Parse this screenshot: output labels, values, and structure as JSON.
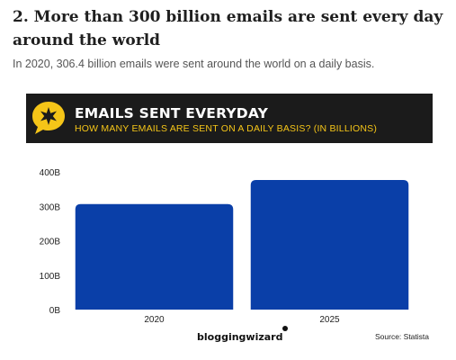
{
  "article": {
    "heading": "2. More than 300 billion emails are sent every day around the world",
    "lead": "In 2020, 306.4 billion emails were sent around the world on a daily basis."
  },
  "banner": {
    "title": "EMAILS SENT EVERYDAY",
    "subtitle": "HOW MANY EMAILS ARE SENT ON A DAILY BASIS? (IN BILLIONS)",
    "badge_icon": "star-speech-bubble-icon",
    "badge_color": "#f5c518",
    "background_color": "#1b1b1b"
  },
  "chart_data": {
    "type": "bar",
    "categories": [
      "2020",
      "2025"
    ],
    "values": [
      306.4,
      376.4
    ],
    "ylim": [
      0,
      400
    ],
    "yticks": [
      0,
      100,
      200,
      300,
      400
    ],
    "ytick_labels": [
      "0B",
      "100B",
      "200B",
      "300B",
      "400B"
    ],
    "grid": false,
    "bar_color": "#0a3fa8"
  },
  "footer": {
    "logo_text": "bloggingwizard",
    "source": "Source: Statista"
  }
}
